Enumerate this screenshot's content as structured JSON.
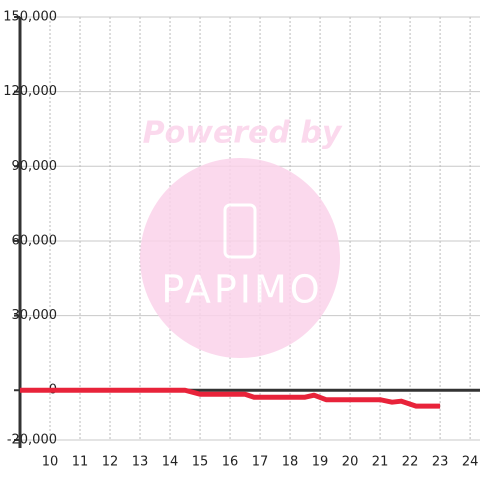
{
  "chart_data": {
    "type": "line",
    "watermark": [
      "Powered by",
      "PAPIMO"
    ],
    "x": [
      9,
      14.5,
      15,
      16.5,
      16.8,
      18.5,
      18.8,
      19.2,
      21,
      21.4,
      21.7,
      22.2,
      23
    ],
    "series": [
      {
        "color": "#e8233a",
        "values": [
          0,
          0,
          -1600,
          -1600,
          -2800,
          -2800,
          -2000,
          -3800,
          -3800,
          -4800,
          -4400,
          -6400,
          -6400
        ]
      }
    ],
    "xlim": [
      9,
      24.33
    ],
    "xticks": [
      10,
      11,
      12,
      13,
      14,
      15,
      16,
      17,
      18,
      19,
      20,
      21,
      22,
      23,
      24
    ],
    "ylim": [
      -20000,
      150000
    ],
    "yticks": [
      {
        "value": -20000,
        "label": "-20,000"
      },
      0,
      {
        "value": 30000,
        "label": "30,000"
      },
      {
        "value": 60000,
        "label": "60,000"
      },
      {
        "value": 90000,
        "label": "90,000"
      },
      {
        "value": 120000,
        "label": "120,000"
      },
      {
        "value": 150000,
        "label": "150,000"
      }
    ],
    "grid": true
  }
}
